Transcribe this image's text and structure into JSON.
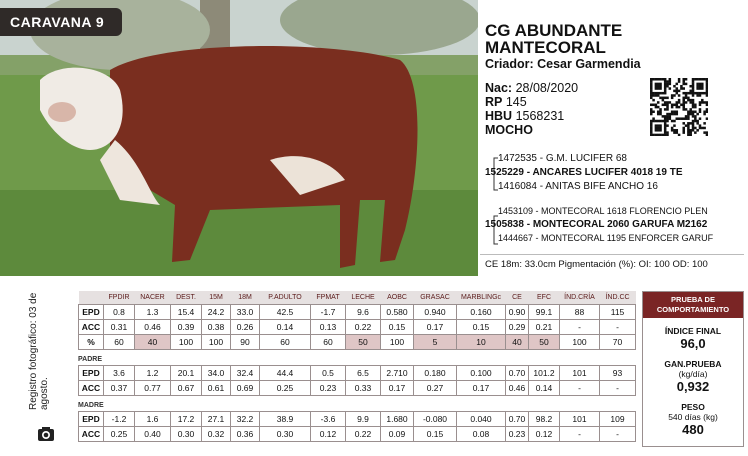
{
  "badge": "CARAVANA 9",
  "animal": {
    "name_lines": [
      "CG ABUNDANTE",
      "MANTECORAL"
    ],
    "breeder_label": "Criador:",
    "breeder": "Cesar Garmendia",
    "facts": [
      {
        "label": "Nac:",
        "value": "28/08/2020"
      },
      {
        "label": "RP",
        "value": "145"
      },
      {
        "label": "HBU",
        "value": "1568231"
      }
    ],
    "polled": "MOCHO"
  },
  "pedigree": {
    "sire": {
      "sire": "1472535 - G.M. LUCIFER 68",
      "self": "1525229 - ANCARES LUCIFER 4018 19 TE",
      "dam": "1416084 - ANITAS BIFE ANCHO 16"
    },
    "dam": {
      "sire": "1453109 - MONTECORAL 1618 FLORENCIO PLEN",
      "self": "1505838 - MONTECORAL 2060 GARUFA M2162",
      "dam": "1444667 - MONTECORAL 1195 ENFORCER GARUF"
    }
  },
  "measures": "CE 18m: 33.0cm Pigmentación (%): OI: 100 OD: 100",
  "photo_note": "Registro fotográfico: 03 de agosto.",
  "epd_table": {
    "columns": [
      "FPDIR",
      "NACER",
      "DEST.",
      "15M",
      "18M",
      "P.ADULTO",
      "FPMAT",
      "LECHE",
      "AOBC",
      "GRASAC",
      "MARBLINGc",
      "CE",
      "EFC",
      "ÍND.CRÍA",
      "ÍND.CC"
    ],
    "highlight_color": "#dfc6c6",
    "animal": {
      "rows": [
        {
          "label": "EPD",
          "cells": [
            "0.8",
            "1.3",
            "15.4",
            "24.2",
            "33.0",
            "42.5",
            "-1.7",
            "9.6",
            "0.580",
            "0.940",
            "0.160",
            "0.90",
            "99.1",
            "88",
            "115"
          ]
        },
        {
          "label": "ACC",
          "cells": [
            "0.31",
            "0.46",
            "0.39",
            "0.38",
            "0.26",
            "0.14",
            "0.13",
            "0.22",
            "0.15",
            "0.17",
            "0.15",
            "0.29",
            "0.21",
            "-",
            "-"
          ]
        },
        {
          "label": "%",
          "cells": [
            "60",
            "40",
            "100",
            "100",
            "90",
            "60",
            "60",
            "50",
            "100",
            "5",
            "10",
            "40",
            "50",
            "100",
            "70"
          ],
          "highlight": [
            1,
            7,
            9,
            10,
            11,
            12
          ]
        }
      ]
    },
    "sire": {
      "title": "PADRE",
      "rows": [
        {
          "label": "EPD",
          "cells": [
            "3.6",
            "1.2",
            "20.1",
            "34.0",
            "32.4",
            "44.4",
            "0.5",
            "6.5",
            "2.710",
            "0.180",
            "0.100",
            "0.70",
            "101.2",
            "101",
            "93"
          ]
        },
        {
          "label": "ACC",
          "cells": [
            "0.37",
            "0.77",
            "0.67",
            "0.61",
            "0.69",
            "0.25",
            "0.23",
            "0.33",
            "0.17",
            "0.27",
            "0.17",
            "0.46",
            "0.14",
            "-",
            "-"
          ]
        }
      ]
    },
    "dam": {
      "title": "MADRE",
      "rows": [
        {
          "label": "EPD",
          "cells": [
            "-1.2",
            "1.6",
            "17.2",
            "27.1",
            "32.2",
            "38.9",
            "-3.6",
            "9.9",
            "1.680",
            "-0.080",
            "0.040",
            "0.70",
            "98.2",
            "101",
            "109"
          ]
        },
        {
          "label": "ACC",
          "cells": [
            "0.25",
            "0.40",
            "0.30",
            "0.32",
            "0.36",
            "0.30",
            "0.12",
            "0.22",
            "0.09",
            "0.15",
            "0.08",
            "0.23",
            "0.12",
            "-",
            "-"
          ]
        }
      ]
    }
  },
  "performance": {
    "title": "PRUEBA DE COMPORTAMIENTO",
    "items": [
      {
        "label_lines": [
          "ÍNDICE FINAL"
        ],
        "value": "96,0"
      },
      {
        "label_lines": [
          "GAN.PRUEBA",
          "(kg/día)"
        ],
        "value": "0,932"
      },
      {
        "label_lines": [
          "PESO",
          "540 días (kg)"
        ],
        "value": "480"
      }
    ]
  }
}
